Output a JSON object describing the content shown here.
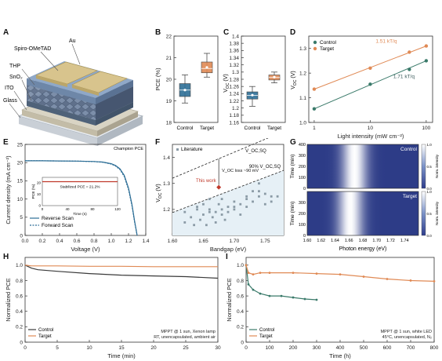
{
  "panels": {
    "A": {
      "label": "A",
      "layers": [
        "Au",
        "Spiro-OMeTAD",
        "THP",
        "SnO₂",
        "ITO",
        "Glass"
      ]
    },
    "B": {
      "label": "B"
    },
    "C": {
      "label": "C"
    },
    "D": {
      "label": "D"
    },
    "E": {
      "label": "E"
    },
    "F": {
      "label": "F"
    },
    "G": {
      "label": "G"
    },
    "H": {
      "label": "H"
    },
    "I": {
      "label": "I"
    }
  },
  "chart_data": [
    {
      "id": "B",
      "type": "box",
      "title": "",
      "xlabel": "",
      "ylabel": "PCE (%)",
      "ylim": [
        18,
        22
      ],
      "yticks": [
        18,
        19,
        20,
        21,
        22
      ],
      "categories": [
        "Control",
        "Target"
      ],
      "series": [
        {
          "name": "Control",
          "color": "#2d6e96",
          "q1": 19.2,
          "q3": 19.8,
          "median": 19.5,
          "mean": 19.5,
          "whisker_low": 18.9,
          "whisker_high": 20.2
        },
        {
          "name": "Target",
          "color": "#e08a55",
          "q1": 20.3,
          "q3": 20.8,
          "median": 20.5,
          "mean": 20.55,
          "whisker_low": 20.1,
          "whisker_high": 21.2
        }
      ]
    },
    {
      "id": "C",
      "type": "box",
      "title": "",
      "xlabel": "",
      "ylabel": "V_OC (V)",
      "ylim": [
        1.16,
        1.4
      ],
      "yticks": [
        1.16,
        1.18,
        1.2,
        1.22,
        1.24,
        1.26,
        1.28,
        1.3,
        1.32,
        1.34,
        1.36,
        1.38,
        1.4
      ],
      "categories": [
        "Control",
        "Target"
      ],
      "series": [
        {
          "name": "Control",
          "color": "#2d6e96",
          "q1": 1.225,
          "q3": 1.245,
          "median": 1.235,
          "mean": 1.236,
          "whisker_low": 1.205,
          "whisker_high": 1.26
        },
        {
          "name": "Target",
          "color": "#e08a55",
          "q1": 1.278,
          "q3": 1.292,
          "median": 1.285,
          "mean": 1.286,
          "whisker_low": 1.27,
          "whisker_high": 1.3
        }
      ]
    },
    {
      "id": "D",
      "type": "scatter",
      "title": "",
      "xlabel": "Light intensity (mW cm⁻²)",
      "ylabel": "V_OC (V)",
      "xscale": "log",
      "xlim": [
        0.8,
        130
      ],
      "ylim": [
        1.0,
        1.35
      ],
      "xticks": [
        1,
        10,
        100
      ],
      "xticklabels": [
        "1",
        "10",
        "100"
      ],
      "yticks": [
        1.0,
        1.1,
        1.2,
        1.3
      ],
      "yticklabels": [
        "1.0",
        "1.1",
        "1.2",
        "1.3"
      ],
      "legend": "top-left",
      "series": [
        {
          "name": "Control",
          "color": "#3a7a6a",
          "x": [
            1,
            10,
            50,
            100
          ],
          "y": [
            1.055,
            1.155,
            1.215,
            1.25
          ],
          "fit_label": "1.71 kT/q"
        },
        {
          "name": "Target",
          "color": "#e08a55",
          "x": [
            1,
            10,
            50,
            100
          ],
          "y": [
            1.135,
            1.22,
            1.285,
            1.31
          ],
          "fit_label": "1.51 kT/q"
        }
      ]
    },
    {
      "id": "E",
      "type": "line",
      "title": "Champion PCE",
      "xlabel": "Voltage (V)",
      "ylabel": "Current density (mA cm⁻²)",
      "xlim": [
        0,
        1.4
      ],
      "ylim": [
        0,
        25
      ],
      "xticks": [
        0,
        0.2,
        0.4,
        0.6,
        0.8,
        1.0,
        1.2,
        1.4
      ],
      "xticklabels": [
        "0.0",
        "0.2",
        "0.4",
        "0.6",
        "0.8",
        "1.0",
        "1.2",
        "1.4"
      ],
      "yticks": [
        0,
        5,
        10,
        15,
        20,
        25
      ],
      "legend": "bottom-left",
      "series": [
        {
          "name": "Reverse Scan",
          "color": "#2d6e96",
          "x": [
            0,
            0.2,
            0.4,
            0.6,
            0.8,
            0.9,
            1.0,
            1.05,
            1.1,
            1.15,
            1.2,
            1.24,
            1.27,
            1.3
          ],
          "y": [
            20.5,
            20.5,
            20.45,
            20.4,
            20.3,
            20.15,
            19.7,
            19.2,
            18.3,
            16.5,
            13,
            8.5,
            4,
            0
          ]
        },
        {
          "name": "Forward Scan",
          "color": "#2d6e96",
          "x": [
            0,
            0.2,
            0.4,
            0.6,
            0.8,
            0.9,
            1.0,
            1.05,
            1.1,
            1.15,
            1.2,
            1.24,
            1.27,
            1.3
          ],
          "y": [
            20.5,
            20.5,
            20.45,
            20.4,
            20.28,
            20.1,
            19.6,
            19.05,
            18.1,
            16.2,
            12.6,
            8.1,
            3.7,
            0
          ]
        }
      ],
      "inset": {
        "title": "Stabilized PCE = 21.2%",
        "xlabel": "Time (s)",
        "ylabel": "PCE (%)",
        "xlim": [
          0,
          120
        ],
        "xticks": [
          0,
          40,
          80,
          120
        ],
        "ylim": [
          0,
          25
        ],
        "yticks": [
          0,
          10,
          20
        ],
        "value": 21.2,
        "color": "#c0392b"
      }
    },
    {
      "id": "F",
      "type": "scatter",
      "title": "",
      "xlabel": "Bandgap (eV)",
      "ylabel": "V_OC (V)",
      "xlim": [
        1.6,
        1.78
      ],
      "ylim": [
        1.1,
        1.45
      ],
      "xticks": [
        1.6,
        1.65,
        1.7,
        1.75
      ],
      "xticklabels": [
        "1.60",
        "1.65",
        "1.70",
        "1.75"
      ],
      "yticks": [
        1.2,
        1.3,
        1.4
      ],
      "yticklabels": [
        "1.2",
        "1.3",
        "1.4"
      ],
      "legend": "top-left",
      "series": [
        {
          "name": "Literature",
          "color": "#8a9aa5",
          "x": [
            1.62,
            1.63,
            1.635,
            1.64,
            1.645,
            1.65,
            1.65,
            1.655,
            1.66,
            1.66,
            1.665,
            1.67,
            1.67,
            1.675,
            1.68,
            1.68,
            1.685,
            1.69,
            1.69,
            1.7,
            1.7,
            1.71,
            1.71,
            1.72,
            1.72,
            1.73,
            1.73,
            1.74,
            1.74,
            1.75,
            1.75,
            1.76,
            1.62,
            1.64,
            1.66,
            1.68,
            1.7,
            1.72,
            1.74,
            1.76,
            1.77
          ],
          "y": [
            1.15,
            1.17,
            1.14,
            1.2,
            1.16,
            1.18,
            1.22,
            1.14,
            1.2,
            1.24,
            1.17,
            1.19,
            1.15,
            1.22,
            1.18,
            1.2,
            1.16,
            1.21,
            1.19,
            1.2,
            1.23,
            1.18,
            1.22,
            1.25,
            1.21,
            1.27,
            1.23,
            1.3,
            1.25,
            1.26,
            1.22,
            1.23,
            1.19,
            1.21,
            1.19,
            1.24,
            1.21,
            1.24,
            1.27,
            1.25,
            1.25
          ]
        },
        {
          "name": "This work",
          "color": "#c0392b",
          "x": [
            1.675
          ],
          "y": [
            1.285
          ]
        }
      ],
      "annotations": [
        {
          "text": "V_OC,SQ",
          "color": "#111"
        },
        {
          "text": "90% V_OC,SQ",
          "color": "#111"
        },
        {
          "text": "This work",
          "color": "#c0392b"
        },
        {
          "text": "V_OC loss ~90 mV",
          "color": "#111"
        }
      ]
    },
    {
      "id": "G",
      "type": "heatmap",
      "title": "",
      "xlabel": "Photon energy (eV)",
      "ylabel": "Time (min)",
      "xlim": [
        1.6,
        1.76
      ],
      "xticks": [
        1.6,
        1.62,
        1.64,
        1.66,
        1.68,
        1.7,
        1.72,
        1.74
      ],
      "xticklabels": [
        "1.60",
        "1.62",
        "1.64",
        "1.66",
        "1.68",
        "1.70",
        "1.72",
        "1.74"
      ],
      "ylim": [
        0,
        400
      ],
      "yticks": [
        0,
        100,
        200,
        300,
        400
      ],
      "colorbar": {
        "label": "Norm. intensity",
        "ticks": [
          0,
          0.5,
          1.0
        ],
        "ticklabels": [
          "0.0",
          "0.5",
          "1.0"
        ]
      },
      "subplots": [
        {
          "name": "Control",
          "peak_ev": 1.668,
          "width_ev": 0.008
        },
        {
          "name": "Target",
          "peak_ev": 1.662,
          "width_ev": 0.008
        }
      ]
    },
    {
      "id": "H",
      "type": "line",
      "title": "",
      "xlabel": "Time (min)",
      "ylabel": "Normalized PCE",
      "xlim": [
        0,
        30
      ],
      "ylim": [
        0,
        1.1
      ],
      "xticks": [
        0,
        5,
        10,
        15,
        20,
        25,
        30
      ],
      "yticks": [
        0,
        0.2,
        0.4,
        0.6,
        0.8,
        1.0
      ],
      "yticklabels": [
        "0",
        "0.2",
        "0.4",
        "0.6",
        "0.8",
        "1.0"
      ],
      "legend": "bottom-left",
      "annotation": "MPPT @ 1 sun, Xenon lamp\nRT, unencapsulated, ambient air",
      "series": [
        {
          "name": "Control",
          "color": "#3a3a3a",
          "x": [
            0,
            1,
            2,
            5,
            10,
            15,
            20,
            25,
            30
          ],
          "y": [
            1.0,
            0.96,
            0.94,
            0.92,
            0.89,
            0.87,
            0.86,
            0.85,
            0.83
          ]
        },
        {
          "name": "Target",
          "color": "#e08a55",
          "x": [
            0,
            1,
            2,
            5,
            10,
            15,
            20,
            25,
            30
          ],
          "y": [
            1.0,
            0.99,
            0.99,
            0.99,
            0.985,
            0.985,
            0.98,
            0.98,
            0.98
          ]
        }
      ]
    },
    {
      "id": "I",
      "type": "line",
      "title": "",
      "xlabel": "Time (h)",
      "ylabel": "Normalized PCE",
      "xlim": [
        0,
        800
      ],
      "ylim": [
        0,
        1.1
      ],
      "xticks": [
        0,
        100,
        200,
        300,
        400,
        500,
        600,
        700,
        800
      ],
      "yticks": [
        0,
        0.2,
        0.4,
        0.6,
        0.8,
        1.0
      ],
      "yticklabels": [
        "0",
        "0.2",
        "0.4",
        "0.6",
        "0.8",
        "1.0"
      ],
      "legend": "bottom-left",
      "annotation": "MPPT @ 1 sun, white LED\n45°C, unencapsulated, N₂",
      "series": [
        {
          "name": "Control",
          "color": "#3a7a6a",
          "x": [
            0,
            10,
            30,
            60,
            100,
            150,
            200,
            250,
            300
          ],
          "y": [
            1.0,
            0.75,
            0.68,
            0.63,
            0.6,
            0.6,
            0.58,
            0.56,
            0.55
          ]
        },
        {
          "name": "Target",
          "color": "#e08a55",
          "x": [
            0,
            10,
            30,
            60,
            100,
            200,
            300,
            400,
            500,
            600,
            700,
            800
          ],
          "y": [
            1.0,
            0.9,
            0.88,
            0.9,
            0.9,
            0.9,
            0.89,
            0.88,
            0.85,
            0.82,
            0.8,
            0.79
          ]
        }
      ]
    }
  ]
}
